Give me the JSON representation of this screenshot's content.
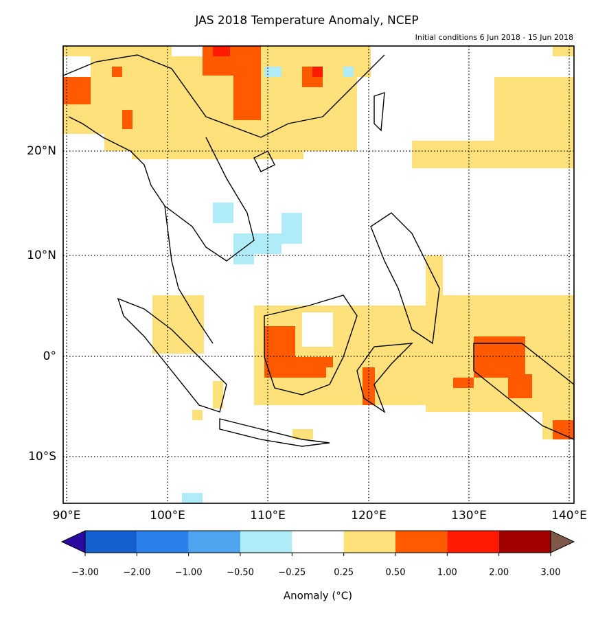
{
  "title": "JAS 2018 Temperature Anomaly, NCEP",
  "subtitle": "Initial conditions 6 Jun 2018 - 15 Jun 2018",
  "lat_labels": [
    "20°N",
    "10°N",
    "0°",
    "10°S"
  ],
  "lon_labels": [
    "90°E",
    "100°E",
    "110°E",
    "120°E",
    "130°E",
    "140°E"
  ],
  "colorbar": {
    "label": "Anomaly (°C)",
    "ticks": [
      "−3.00",
      "−2.00",
      "−1.00",
      "−0.50",
      "−0.25",
      "0.25",
      "0.50",
      "1.00",
      "2.00",
      "3.00"
    ],
    "low_color": "#2a0aa0",
    "colors": [
      "#1560d0",
      "#2a80e8",
      "#50a5f0",
      "#b0ecf8",
      "#ffffff",
      "#fee17a",
      "#ff5a00",
      "#ff1a00",
      "#a00000"
    ],
    "high_color": "#80584a"
  }
}
